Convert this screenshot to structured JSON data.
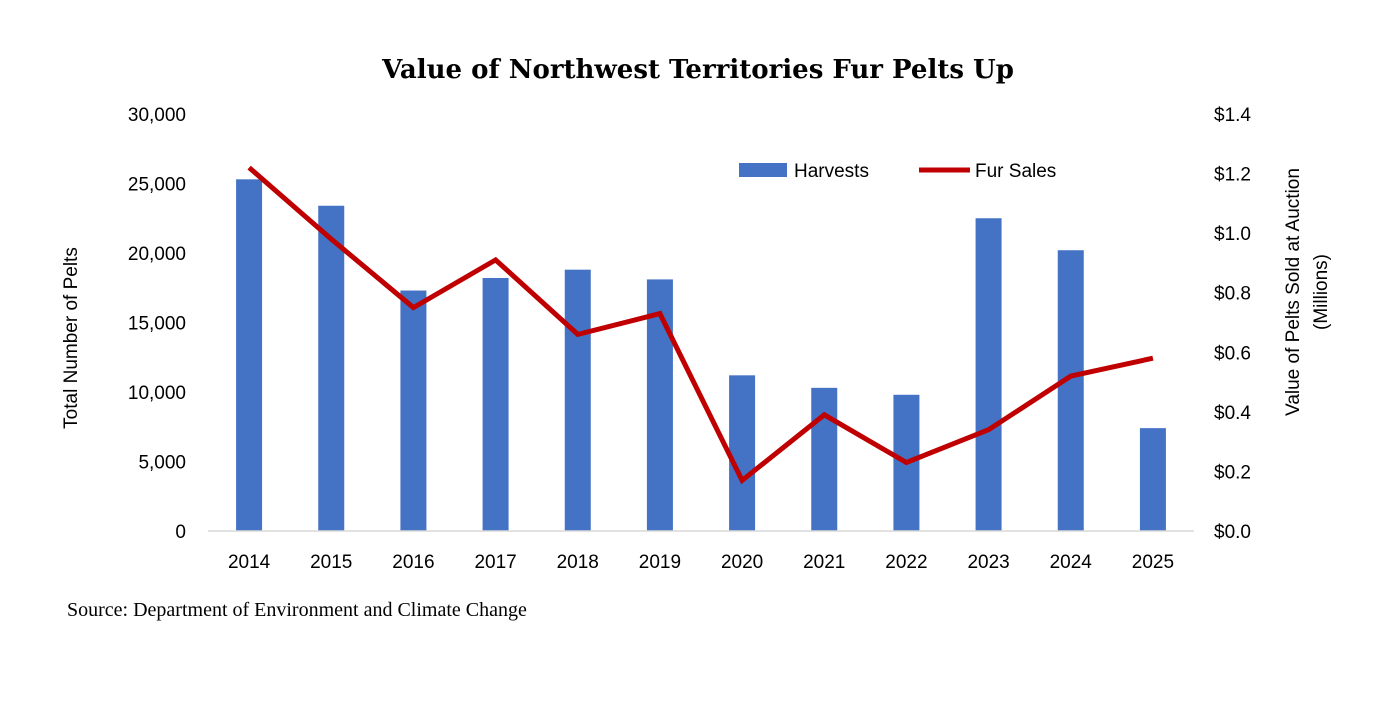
{
  "chart_data": {
    "type": "bar",
    "title": "Value of Northwest Territories Fur Pelts Up",
    "categories": [
      "2014",
      "2015",
      "2016",
      "2017",
      "2018",
      "2019",
      "2020",
      "2021",
      "2022",
      "2023",
      "2024",
      "2025"
    ],
    "series": [
      {
        "name": "Harvests",
        "type": "bar",
        "axis": "left",
        "color": "#4472C4",
        "values": [
          25300,
          23400,
          17300,
          18200,
          18800,
          18100,
          11200,
          10300,
          9800,
          22500,
          20200,
          7400
        ]
      },
      {
        "name": "Fur Sales",
        "type": "line",
        "axis": "right",
        "color": "#C00000",
        "values": [
          1.22,
          0.98,
          0.75,
          0.91,
          0.66,
          0.73,
          0.17,
          0.39,
          0.23,
          0.34,
          0.52,
          0.58
        ]
      }
    ],
    "ylabel": "Total Number of Pelts",
    "ylim": [
      0,
      30000
    ],
    "yticks": [
      "0",
      "5,000",
      "10,000",
      "15,000",
      "20,000",
      "25,000",
      "30,000"
    ],
    "y2label_lines": [
      "Value of Pelts Sold at Auction",
      "(Millions)"
    ],
    "y2lim": [
      0,
      1.4
    ],
    "y2ticks": [
      "$0.0",
      "$0.2",
      "$0.4",
      "$0.6",
      "$0.8",
      "$1.0",
      "$1.2",
      "$1.4"
    ],
    "grid": false,
    "legend_position": "top-right"
  },
  "source": "Source: Department of Environment and Climate Change"
}
